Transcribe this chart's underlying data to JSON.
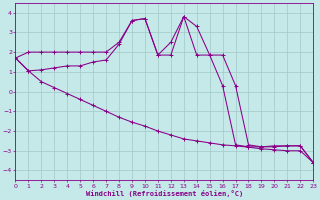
{
  "xlabel": "Windchill (Refroidissement éolien,°C)",
  "background_color": "#c5e8e8",
  "grid_color": "#a0c8c8",
  "line_color": "#880088",
  "xlim": [
    0,
    23
  ],
  "ylim": [
    -4.5,
    4.5
  ],
  "yticks": [
    -4,
    -3,
    -2,
    -1,
    0,
    1,
    2,
    3,
    4
  ],
  "xticks": [
    0,
    1,
    2,
    3,
    4,
    5,
    6,
    7,
    8,
    9,
    10,
    11,
    12,
    13,
    14,
    15,
    16,
    17,
    18,
    19,
    20,
    21,
    22,
    23
  ],
  "line1_x": [
    0,
    1,
    2,
    3,
    4,
    5,
    6,
    7,
    8,
    9,
    10,
    11,
    12,
    13,
    14,
    15,
    16,
    17,
    18,
    19,
    20,
    21,
    22,
    23
  ],
  "line1_y": [
    1.7,
    2.0,
    2.0,
    2.0,
    2.0,
    2.0,
    2.0,
    2.0,
    2.5,
    3.6,
    3.7,
    1.85,
    1.85,
    3.8,
    1.85,
    1.85,
    1.85,
    0.3,
    -2.7,
    -2.8,
    -2.8,
    -2.75,
    -2.75,
    -3.6
  ],
  "line2_x": [
    0,
    1,
    2,
    3,
    4,
    5,
    6,
    7,
    8,
    9,
    10,
    11,
    12,
    13,
    14,
    15,
    16,
    17,
    18,
    19,
    20,
    21,
    22,
    23
  ],
  "line2_y": [
    1.7,
    1.05,
    1.1,
    1.2,
    1.3,
    1.3,
    1.5,
    1.6,
    2.4,
    3.6,
    3.7,
    1.85,
    2.5,
    3.8,
    3.3,
    1.85,
    0.3,
    -2.7,
    -2.8,
    -2.8,
    -2.75,
    -2.75,
    -2.75,
    -3.6
  ],
  "line3_x": [
    0,
    1,
    2,
    3,
    4,
    5,
    6,
    7,
    8,
    9,
    10,
    11,
    12,
    13,
    14,
    15,
    16,
    17,
    18,
    19,
    20,
    21,
    22,
    23
  ],
  "line3_y": [
    1.7,
    1.05,
    0.5,
    0.2,
    -0.1,
    -0.4,
    -0.7,
    -1.0,
    -1.3,
    -1.55,
    -1.75,
    -2.0,
    -2.2,
    -2.4,
    -2.5,
    -2.6,
    -2.7,
    -2.75,
    -2.82,
    -2.9,
    -2.95,
    -3.0,
    -3.0,
    -3.6
  ],
  "figsize": [
    3.2,
    2.0
  ],
  "dpi": 100
}
